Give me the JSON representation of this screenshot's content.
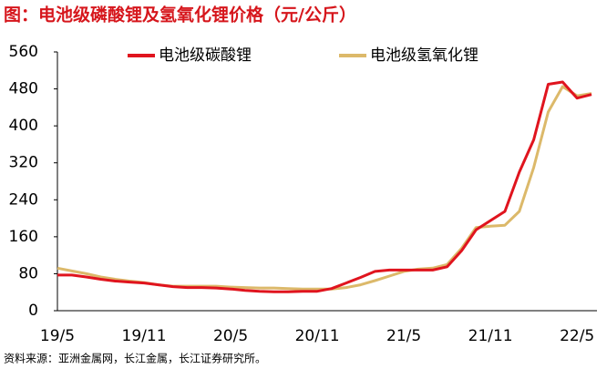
{
  "chart_data": {
    "type": "line",
    "title": "图：电池级磷酸锂及氢氧化锂价格（元/公斤）",
    "source": "资料来源：亚洲金属网，长江金属，长江证券研究所。",
    "categories": [
      "19/5",
      null,
      null,
      null,
      null,
      null,
      "19/11",
      null,
      null,
      null,
      null,
      null,
      "20/5",
      null,
      null,
      null,
      null,
      null,
      "20/11",
      null,
      null,
      null,
      null,
      null,
      "21/5",
      null,
      null,
      null,
      null,
      null,
      "21/11",
      null,
      null,
      null,
      null,
      null,
      "22/5",
      null
    ],
    "series": [
      {
        "name": "电池级碳酸锂",
        "color": "#e0141e",
        "values": [
          77,
          77,
          73,
          68,
          64,
          62,
          60,
          56,
          52,
          50,
          50,
          49,
          47,
          44,
          42,
          41,
          41,
          42,
          42,
          48,
          60,
          72,
          85,
          88,
          88,
          88,
          88,
          95,
          130,
          175,
          195,
          215,
          300,
          370,
          490,
          495,
          460,
          468
        ]
      },
      {
        "name": "电池级氢氧化锂",
        "color": "#dcb96a",
        "values": [
          92,
          86,
          80,
          73,
          68,
          64,
          61,
          56,
          53,
          53,
          53,
          53,
          51,
          50,
          49,
          49,
          48,
          47,
          47,
          47,
          50,
          56,
          65,
          75,
          85,
          90,
          92,
          100,
          135,
          180,
          183,
          185,
          215,
          310,
          430,
          485,
          465,
          470
        ]
      }
    ],
    "ylim": [
      0,
      560
    ],
    "yticks": [
      0,
      80,
      160,
      240,
      320,
      400,
      480,
      560
    ],
    "legend": "top"
  }
}
